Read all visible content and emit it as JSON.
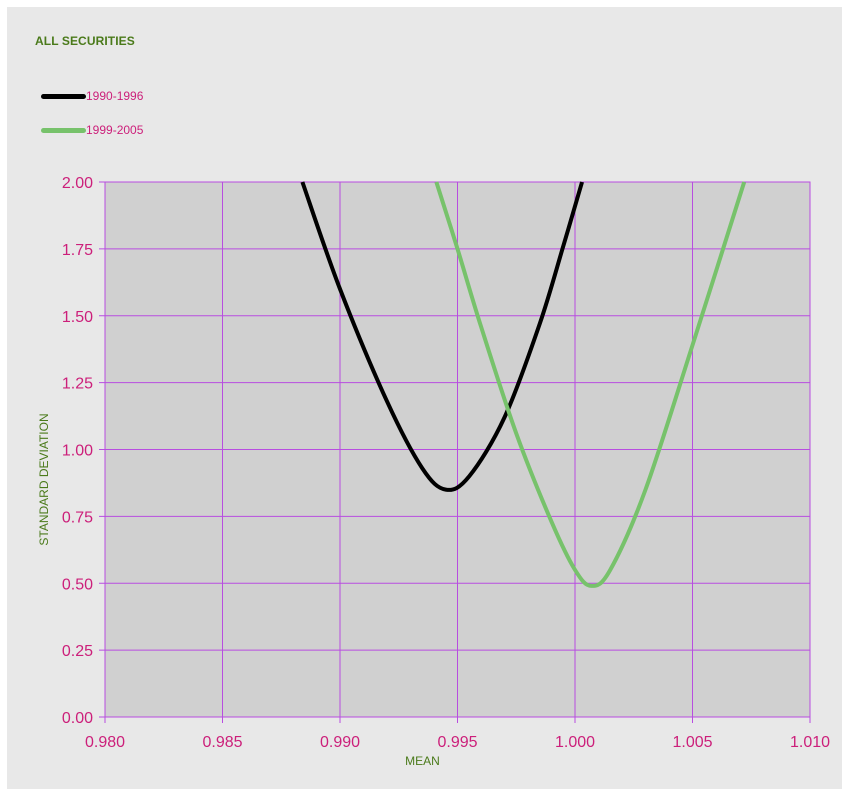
{
  "chart_data": {
    "type": "line",
    "title": "ALL SECURITIES",
    "xlabel": "MEAN",
    "ylabel": "STANDARD DEVIATION",
    "xlim": [
      0.98,
      1.01
    ],
    "ylim": [
      0.0,
      2.0
    ],
    "x_ticks": [
      "0.980",
      "0.985",
      "0.990",
      "0.995",
      "1.000",
      "1.005",
      "1.010"
    ],
    "y_ticks": [
      "0.00",
      "0.25",
      "0.50",
      "0.75",
      "1.00",
      "1.25",
      "1.50",
      "1.75",
      "2.00"
    ],
    "grid": true,
    "legend_position": "top-left",
    "series": [
      {
        "name": "1990-1996",
        "color": "#000000",
        "x": [
          0.9884,
          0.99,
          0.992,
          0.9935,
          0.9945,
          0.9955,
          0.997,
          0.9985,
          0.9995,
          1.0003
        ],
        "y": [
          2.0,
          1.6,
          1.18,
          0.93,
          0.85,
          0.9,
          1.12,
          1.47,
          1.76,
          2.0
        ]
      },
      {
        "name": "1999-2005",
        "color": "#77c26b",
        "x": [
          0.9941,
          0.995,
          0.996,
          0.9975,
          0.999,
          1.0,
          1.0007,
          1.0015,
          1.003,
          1.005,
          1.0072
        ],
        "y": [
          2.0,
          1.75,
          1.46,
          1.06,
          0.73,
          0.55,
          0.49,
          0.55,
          0.85,
          1.39,
          2.0
        ]
      }
    ]
  },
  "colors": {
    "panel_bg": "#e8e8e8",
    "plot_bg": "#d0d0d0",
    "grid": "#b84de0",
    "tick_text": "#cc1f7a",
    "axis_title": "#4a7a1a"
  }
}
